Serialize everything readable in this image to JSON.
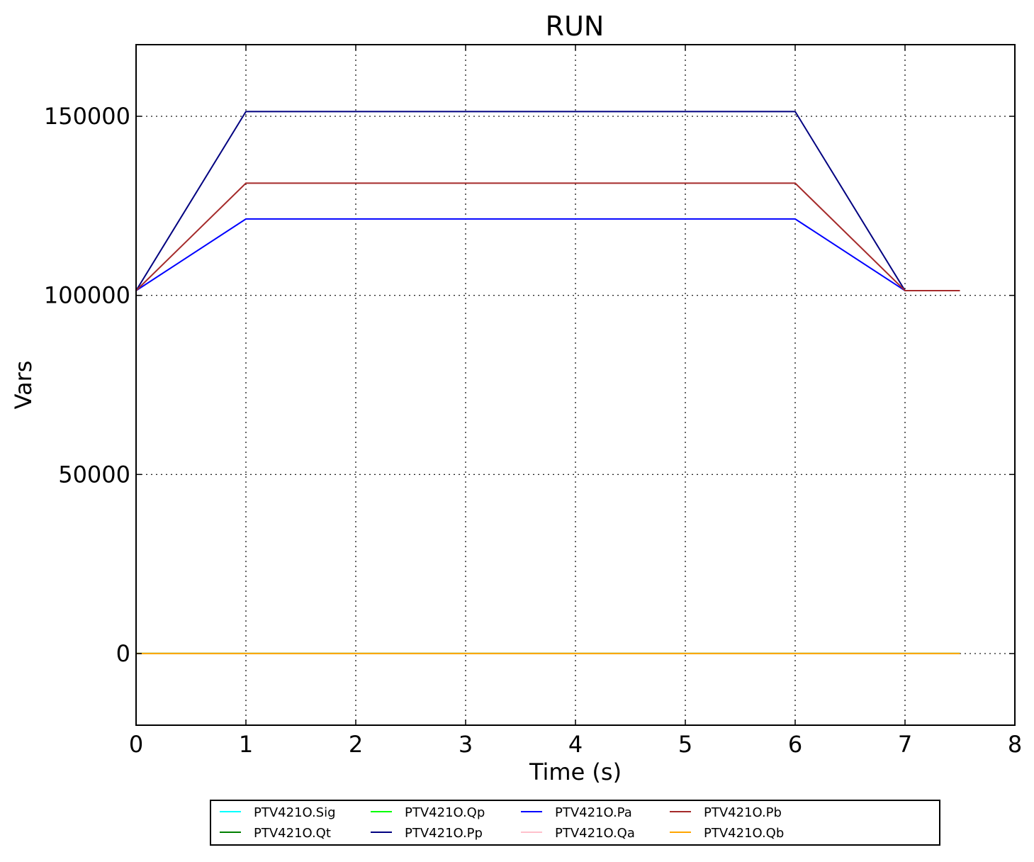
{
  "chart_data": {
    "type": "line",
    "title": "RUN",
    "xlabel": "Time (s)",
    "ylabel": "Vars",
    "xlim": [
      0,
      8
    ],
    "ylim": [
      -20000,
      170000
    ],
    "xticks": [
      0,
      1,
      2,
      3,
      4,
      5,
      6,
      7,
      8
    ],
    "xtick_labels": [
      "0",
      "1",
      "2",
      "3",
      "4",
      "5",
      "6",
      "7",
      "8"
    ],
    "yticks": [
      0,
      50000,
      100000,
      150000
    ],
    "ytick_labels": [
      "0",
      "50000",
      "100000",
      "150000"
    ],
    "grid": true,
    "legend_position": "bottom, below axes",
    "series": [
      {
        "name": "PTV421O.Sig",
        "color": "#00ffff",
        "x": [
          0,
          1,
          6,
          7,
          7.5
        ],
        "y": [
          0,
          0,
          0,
          0,
          0
        ]
      },
      {
        "name": "PTV421O.Qt",
        "color": "#007f00",
        "x": [
          0,
          1,
          6,
          7,
          7.5
        ],
        "y": [
          0,
          0,
          0,
          0,
          0
        ]
      },
      {
        "name": "PTV421O.Qp",
        "color": "#00ff00",
        "x": [
          0,
          1,
          6,
          7,
          7.5
        ],
        "y": [
          0,
          0,
          0,
          0,
          0
        ]
      },
      {
        "name": "PTV421O.Pp",
        "color": "#000080",
        "x": [
          0,
          1,
          6,
          7,
          7.5
        ],
        "y": [
          101325,
          151325,
          151325,
          101325,
          101325
        ]
      },
      {
        "name": "PTV421O.Pa",
        "color": "#0000ff",
        "x": [
          0,
          1,
          6,
          7,
          7.5
        ],
        "y": [
          101325,
          121325,
          121325,
          101325,
          101325
        ]
      },
      {
        "name": "PTV421O.Qa",
        "color": "#ffc0cb",
        "x": [
          0,
          1,
          6,
          7,
          7.5
        ],
        "y": [
          0,
          0,
          0,
          0,
          0
        ]
      },
      {
        "name": "PTV421O.Pb",
        "color": "#a52a2a",
        "x": [
          0,
          1,
          6,
          7,
          7.5
        ],
        "y": [
          101325,
          131325,
          131325,
          101325,
          101325
        ]
      },
      {
        "name": "PTV421O.Qb",
        "color": "#ffa500",
        "x": [
          0,
          1,
          6,
          7,
          7.5
        ],
        "y": [
          0,
          0,
          0,
          0,
          0
        ]
      }
    ]
  }
}
